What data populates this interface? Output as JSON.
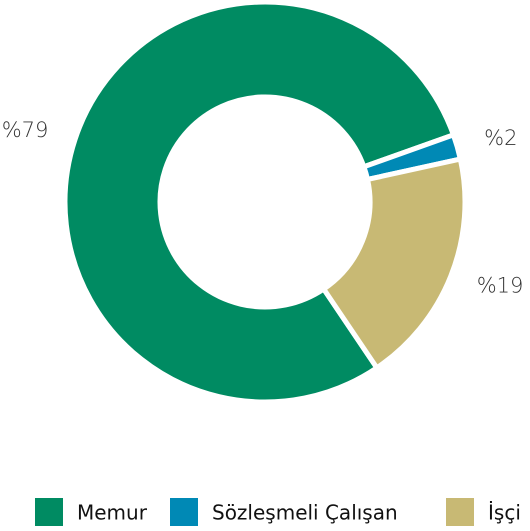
{
  "chart_data": {
    "type": "donut",
    "categories": [
      "Memur",
      "Sözleşmeli Çalışan",
      "İşçi"
    ],
    "values": [
      79,
      2,
      19
    ],
    "value_labels": [
      "%79",
      "%2",
      "%19"
    ],
    "colors": [
      "#008b62",
      "#0089b5",
      "#c8b974"
    ],
    "legend": "bottom"
  }
}
